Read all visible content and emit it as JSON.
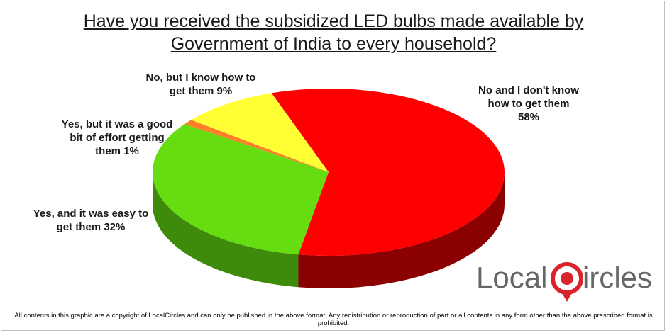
{
  "chart_data": {
    "type": "pie",
    "title_lines": [
      "Have you received the subsidized LED bulbs made available by",
      "Government of India to every household?"
    ],
    "slices": [
      {
        "label_lines": [
          "No and I don't know",
          "how to get them",
          "58%"
        ],
        "value": 58,
        "color": "#ff0000",
        "side_color": "#8b0000"
      },
      {
        "label_lines": [
          "Yes, and it was easy to",
          "get them  32%"
        ],
        "value": 32,
        "color": "#66dd11",
        "side_color": "#3e8a0a"
      },
      {
        "label_lines": [
          "Yes, but it was a good",
          "bit of effort getting",
          "them  1%"
        ],
        "value": 1,
        "color": "#ff7f27",
        "side_color": "#a54c12"
      },
      {
        "label_lines": [
          "No, but I know how to",
          "get them  9%"
        ],
        "value": 9,
        "color": "#ffff33",
        "side_color": "#a8a800"
      }
    ]
  },
  "logo": {
    "text_before": "Local",
    "text_after": "ircles"
  },
  "footer": "All contents in this graphic are a copyright of LocalCircles and can only be published in the above format. Any redistribution or reproduction of part or all contents in any form other than the above prescribed format is prohibited."
}
